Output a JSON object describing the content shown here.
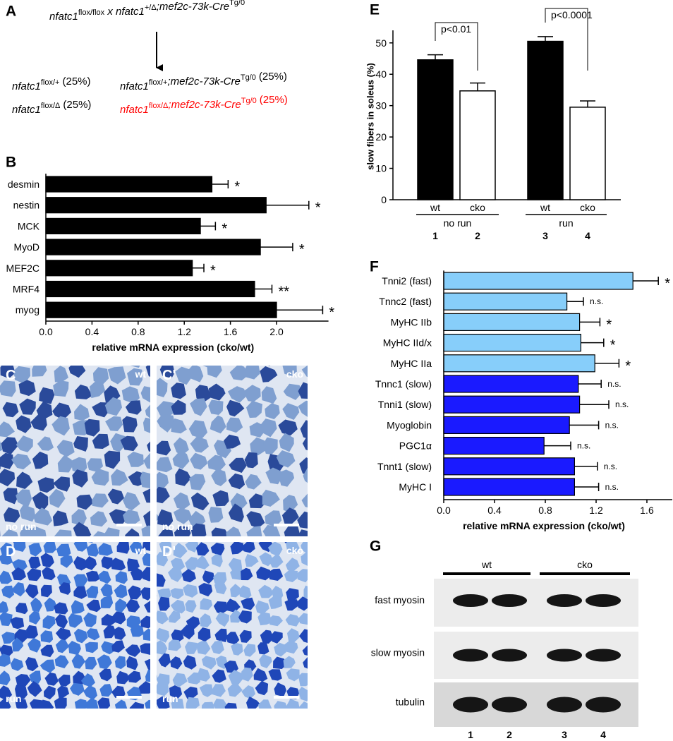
{
  "panel_labels": [
    "A",
    "B",
    "E",
    "F",
    "G"
  ],
  "cross": {
    "parts": [
      {
        "base": "nfatc1",
        "sup": "flox/flox"
      },
      {
        "base": " x nfatc1",
        "sup": "+/Δ"
      },
      {
        "base": ";mef2c-73k-Cre",
        "sup": "Tg/0"
      }
    ],
    "offspring": [
      {
        "parts": [
          {
            "base": "nfatc1",
            "sup": "flox/+"
          }
        ],
        "percent": "(25%)",
        "color": "#000000"
      },
      {
        "parts": [
          {
            "base": "nfatc1",
            "sup": "flox/+"
          },
          {
            "base": ";mef2c-73k-Cre",
            "sup": "Tg/0"
          }
        ],
        "percent": "(25%)",
        "color": "#000000"
      },
      {
        "parts": [
          {
            "base": "nfatc1",
            "sup": "flox/Δ"
          }
        ],
        "percent": "(25%)",
        "color": "#000000"
      },
      {
        "parts": [
          {
            "base": "nfatc1",
            "sup": "flox/Δ"
          },
          {
            "base": ";mef2c-73k-Cre",
            "sup": "Tg/0"
          }
        ],
        "percent": "(25%)",
        "color": "#ff0000"
      }
    ]
  },
  "chart_data": [
    {
      "type": "hbar",
      "categories": [
        "desmin",
        "nestin",
        "MCK",
        "MyoD",
        "MEF2C",
        "MRF4",
        "myog"
      ],
      "values": [
        1.44,
        1.91,
        1.34,
        1.86,
        1.27,
        1.81,
        2.0
      ],
      "errors": [
        0.14,
        0.37,
        0.13,
        0.28,
        0.1,
        0.15,
        0.4
      ],
      "annotations": [
        "*",
        "*",
        "*",
        "*",
        "*",
        "**",
        "*"
      ],
      "color": "#000000",
      "xlabel": "relative mRNA expression (cko/wt)",
      "xlim": [
        0,
        2.45
      ],
      "xticks": [
        {
          "value": 0,
          "label": "0.0"
        },
        0.4,
        0.8,
        1.2,
        1.6,
        {
          "value": 2,
          "label": "2.0"
        }
      ]
    },
    {
      "type": "bar",
      "categories": [
        "wt",
        "cko",
        "wt",
        "cko"
      ],
      "values": [
        44.6,
        34.7,
        50.5,
        29.5
      ],
      "errors": [
        1.6,
        2.5,
        1.5,
        2.0
      ],
      "colors": [
        "#000000",
        "#ffffff",
        "#000000",
        "#ffffff"
      ],
      "groups": [
        "no run",
        "run"
      ],
      "bar_numbers": [
        1,
        2,
        3,
        4
      ],
      "annotations": [
        "p<0.01",
        "p<0.0001"
      ],
      "ylabel": "slow fibers in soleus (%)",
      "ylim": [
        0,
        54
      ],
      "yticks": [
        0,
        10,
        20,
        30,
        40,
        50
      ]
    },
    {
      "type": "hbar",
      "categories": [
        "Tnni2 (fast)",
        "Tnnc2 (fast)",
        "MyHC IIb",
        "MyHC IId/x",
        "MyHC IIa",
        "Tnnc1 (slow)",
        "Tnni1 (slow)",
        "Myoglobin",
        "PGC1α",
        "Tnnt1 (slow)",
        "MyHC I"
      ],
      "values": [
        1.49,
        0.97,
        1.07,
        1.08,
        1.19,
        1.06,
        1.07,
        0.99,
        0.79,
        1.03,
        1.03
      ],
      "errors": [
        0.2,
        0.13,
        0.16,
        0.18,
        0.19,
        0.18,
        0.23,
        0.23,
        0.21,
        0.18,
        0.19
      ],
      "annotations": [
        "*",
        "n.s.",
        "*",
        "*",
        "*",
        "n.s.",
        "n.s.",
        "n.s.",
        "n.s.",
        "n.s.",
        "n.s."
      ],
      "colors": [
        "#87cefa",
        "#87cefa",
        "#87cefa",
        "#87cefa",
        "#87cefa",
        "#1a1aff",
        "#1a1aff",
        "#1a1aff",
        "#1a1aff",
        "#1a1aff",
        "#1a1aff"
      ],
      "xlabel": "relative mRNA expression (cko/wt)",
      "xlim": [
        0,
        1.8
      ],
      "xticks": [
        {
          "value": 0,
          "label": "0.0"
        },
        0.4,
        0.8,
        1.2,
        1.6
      ]
    }
  ],
  "micrographs": [
    {
      "label": "C",
      "genotype": "wt",
      "condition": "no run"
    },
    {
      "label": "C'",
      "genotype": "cko",
      "condition": "no run"
    },
    {
      "label": "D",
      "genotype": "wt",
      "condition": "run"
    },
    {
      "label": "D'",
      "genotype": "cko",
      "condition": "run"
    }
  ],
  "blot": {
    "groups": [
      "wt",
      "cko"
    ],
    "rows": [
      "fast myosin",
      "slow myosin",
      "tubulin"
    ],
    "lanes": [
      1,
      2,
      3,
      4
    ]
  }
}
